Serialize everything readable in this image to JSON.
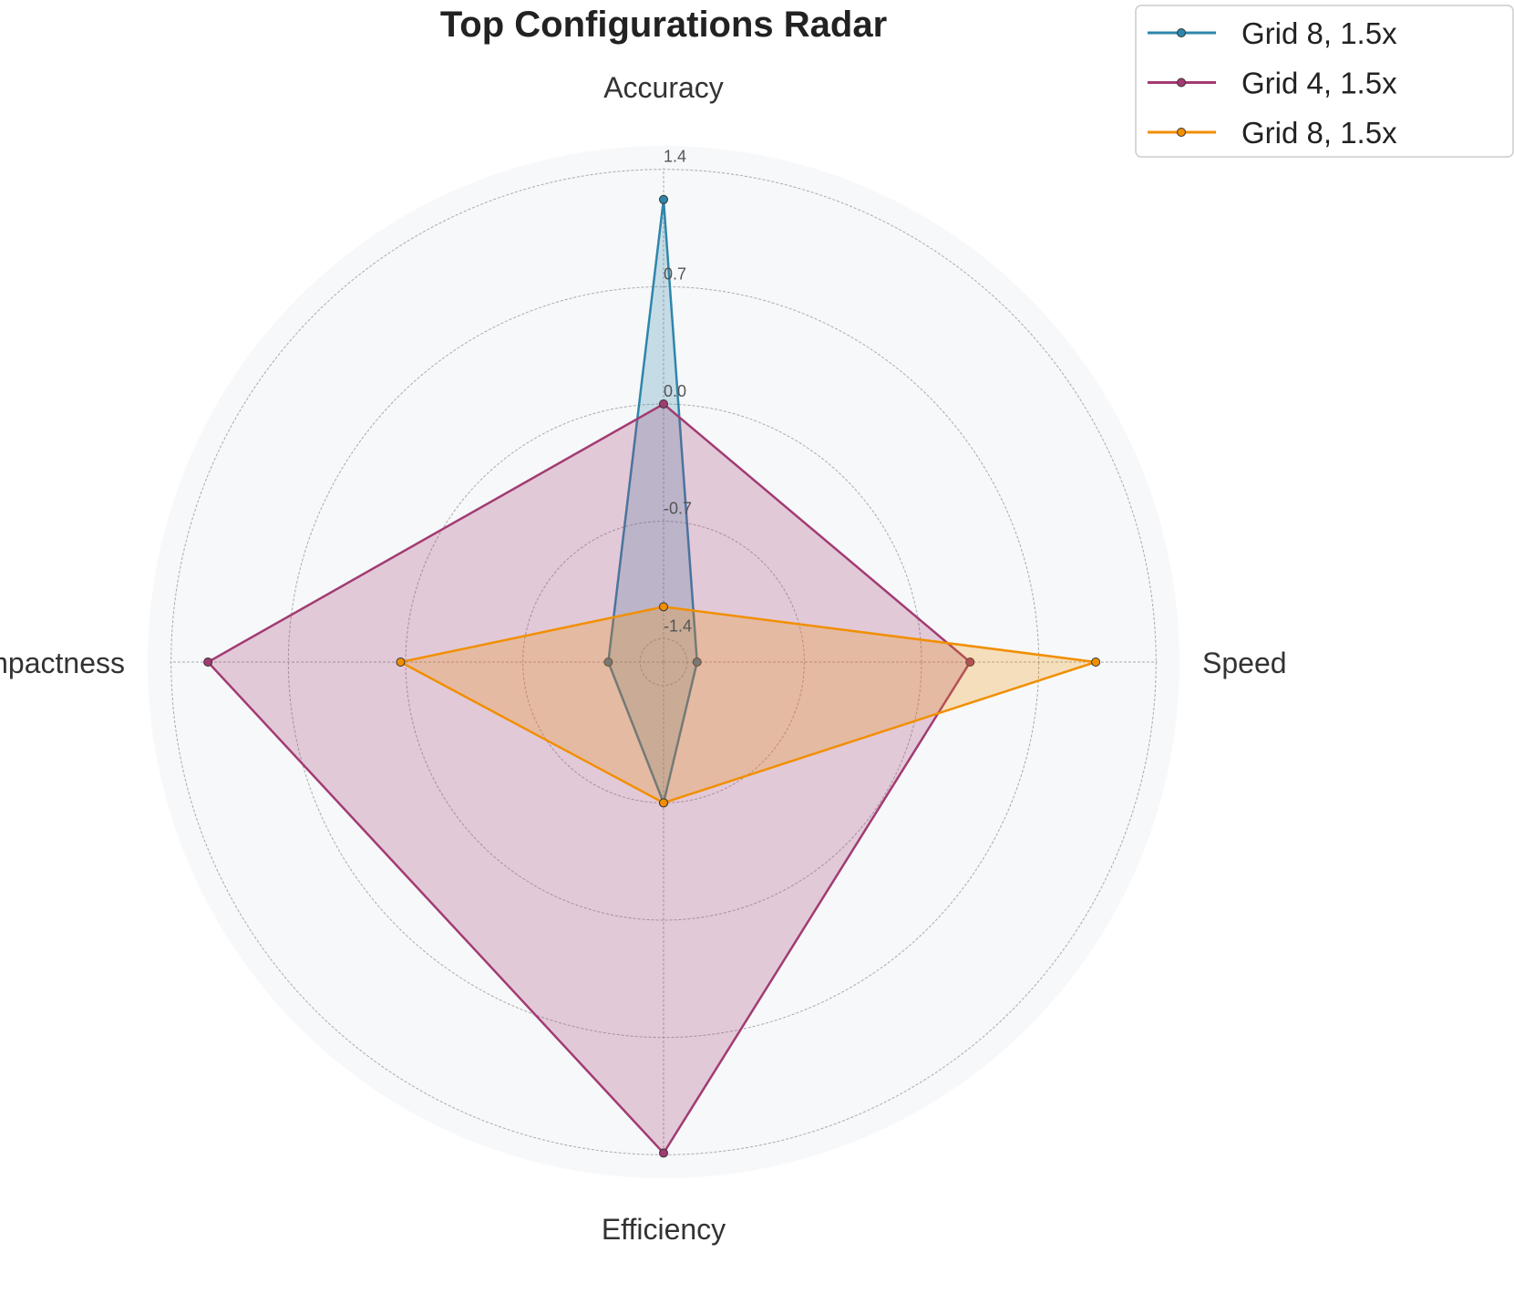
{
  "chart_data": {
    "type": "radar",
    "title": "Top Configurations Radar",
    "axes": [
      "Accuracy",
      "Speed",
      "Efficiency",
      "Compactness"
    ],
    "rlim": [
      -1.54,
      1.54
    ],
    "rticks": [
      -1.4,
      -0.7,
      0.0,
      0.7,
      1.4
    ],
    "rtick_labels": [
      "-1.4",
      "-0.7",
      "0.0",
      "0.7",
      "1.4"
    ],
    "grid": true,
    "legend_position": "top-right",
    "series": [
      {
        "name": "Grid 8, 1.5x",
        "color": "#2e86ab",
        "values": [
          1.22,
          -1.34,
          -0.7,
          -1.21
        ]
      },
      {
        "name": "Grid 4, 1.5x",
        "color": "#a23b72",
        "values": [
          0.0,
          0.29,
          1.39,
          1.18
        ]
      },
      {
        "name": "Grid 8, 1.5x",
        "color": "#f18f01",
        "values": [
          -1.21,
          1.04,
          -0.7,
          0.03
        ]
      }
    ]
  }
}
